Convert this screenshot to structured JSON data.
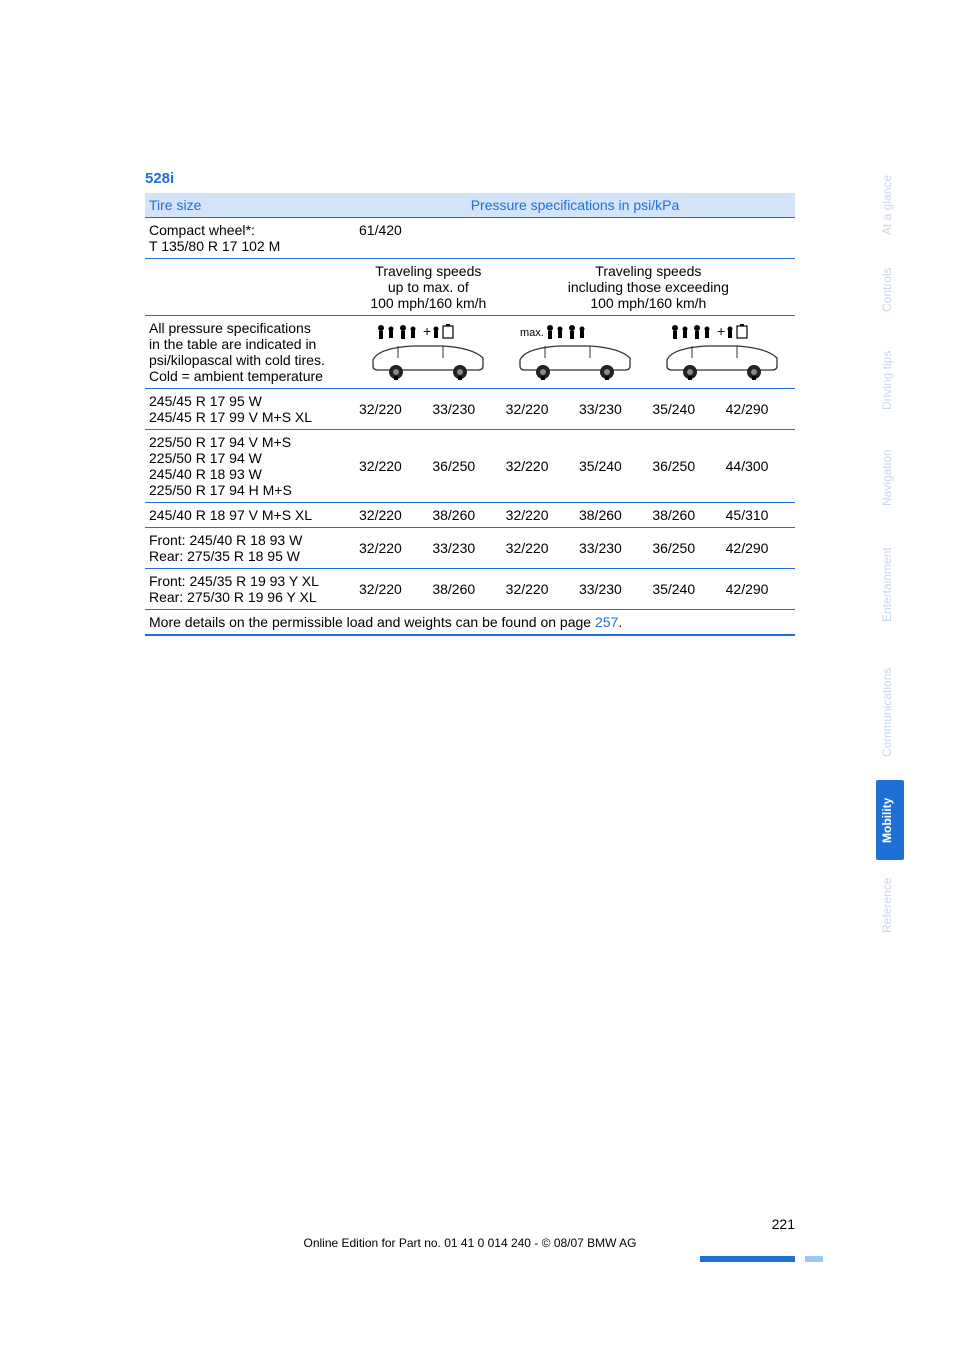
{
  "model_heading": "528i",
  "header": {
    "col1": "Tire size",
    "col2": "Pressure specifications in psi/kPa"
  },
  "compact": {
    "label_line1": "Compact wheel*:",
    "label_line2": "T 135/80 R 17 102 M",
    "value": "61/420"
  },
  "speed_headers": {
    "left_line1": "Traveling speeds",
    "left_line2": "up to max. of",
    "left_line3": "100 mph/160 km/h",
    "right_line1": "Traveling speeds",
    "right_line2": "including those exceeding",
    "right_line3": "100 mph/160 km/h"
  },
  "condition_block": {
    "l1": "All pressure specifications",
    "l2": "in the table are indicated in",
    "l3": "psi/kilopascal with cold tires.",
    "l4": "Cold = ambient temperature",
    "max_label": "max."
  },
  "rows": [
    {
      "label_lines": [
        "245/45 R 17 95 W",
        "245/45 R 17 99 V M+S XL"
      ],
      "vals": [
        "32/220",
        "33/230",
        "32/220",
        "33/230",
        "35/240",
        "42/290"
      ]
    },
    {
      "label_lines": [
        "225/50 R 17 94 V M+S",
        "225/50 R 17 94 W",
        "245/40 R 18 93 W",
        "225/50 R 17 94 H M+S"
      ],
      "vals": [
        "32/220",
        "36/250",
        "32/220",
        "35/240",
        "36/250",
        "44/300"
      ]
    },
    {
      "label_lines": [
        "245/40 R 18 97 V M+S XL"
      ],
      "vals": [
        "32/220",
        "38/260",
        "32/220",
        "38/260",
        "38/260",
        "45/310"
      ]
    },
    {
      "label_lines": [
        "Front: 245/40 R 18 93 W",
        "Rear: 275/35 R 18 95 W"
      ],
      "vals": [
        "32/220",
        "33/230",
        "32/220",
        "33/230",
        "36/250",
        "42/290"
      ]
    },
    {
      "label_lines": [
        "Front: 245/35 R 19 93 Y XL",
        "Rear: 275/30 R 19 96 Y XL"
      ],
      "vals": [
        "32/220",
        "38/260",
        "32/220",
        "33/230",
        "35/240",
        "42/290"
      ]
    }
  ],
  "footnote": {
    "text_prefix": "More details on the permissible load and weights can be found on page ",
    "link": "257",
    "suffix": "."
  },
  "tabs": [
    "At a glance",
    "Controls",
    "Driving tips",
    "Navigation",
    "Entertainment",
    "Communications",
    "Mobility",
    "Reference"
  ],
  "active_tab_index": 6,
  "footer": {
    "page": "221",
    "line": "Online Edition for Part no. 01 41 0 014 240 - © 08/07 BMW AG"
  },
  "colors": {
    "blue": "#1e6fd6",
    "header_bg": "#d3e4fa",
    "faded": "#c9d6e8"
  },
  "icons": {
    "car_stroke": "#333333",
    "tire_fill": "#222222",
    "person_fill": "#000000",
    "luggage_fill": "#000000"
  }
}
